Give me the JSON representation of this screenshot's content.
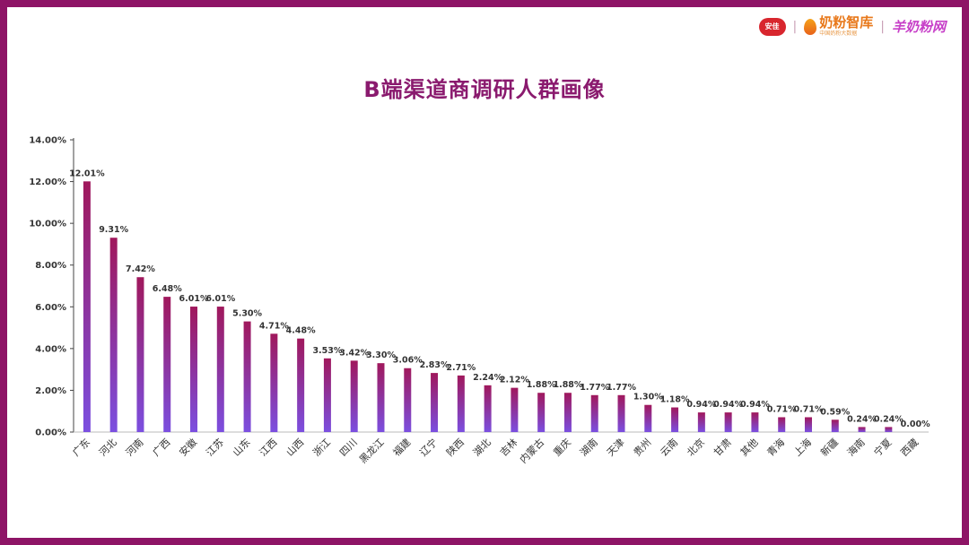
{
  "brand": {
    "logo1": "安佳",
    "logo2_main": "奶粉智库",
    "logo2_sub": "中国奶粉大数据",
    "logo3": "羊奶粉网"
  },
  "colors": {
    "frame": "#8e1466",
    "title": "#8a1a6e",
    "bar_top": "#a0185c",
    "bar_bottom": "#7b4fe0"
  },
  "chart_data": {
    "type": "bar",
    "title": "B端渠道商调研人群画像",
    "categories": [
      "广东",
      "河北",
      "河南",
      "广西",
      "安徽",
      "江苏",
      "山东",
      "江西",
      "山西",
      "浙江",
      "四川",
      "黑龙江",
      "福建",
      "辽宁",
      "陕西",
      "湖北",
      "吉林",
      "内蒙古",
      "重庆",
      "湖南",
      "天津",
      "贵州",
      "云南",
      "北京",
      "甘肃",
      "其他",
      "青海",
      "上海",
      "新疆",
      "海南",
      "宁夏",
      "西藏"
    ],
    "values": [
      12.01,
      9.31,
      7.42,
      6.48,
      6.01,
      6.01,
      5.3,
      4.71,
      4.48,
      3.53,
      3.42,
      3.3,
      3.06,
      2.83,
      2.71,
      2.24,
      2.12,
      1.88,
      1.88,
      1.77,
      1.77,
      1.3,
      1.18,
      0.94,
      0.94,
      0.94,
      0.71,
      0.71,
      0.59,
      0.24,
      0.24,
      0.0
    ],
    "value_labels": [
      "12.01%",
      "9.31%",
      "7.42%",
      "6.48%",
      "6.01%",
      "6.01%",
      "5.30%",
      "4.71%",
      "4.48%",
      "3.53%",
      "3.42%",
      "3.30%",
      "3.06%",
      "2.83%",
      "2.71%",
      "2.24%",
      "2.12%",
      "1.88%",
      "1.88%",
      "1.77%",
      "1.77%",
      "1.30%",
      "1.18%",
      "0.94%",
      "0.94%",
      "0.94%",
      "0.71%",
      "0.71%",
      "0.59%",
      "0.24%",
      "0.24%",
      "0.00%"
    ],
    "ylim": [
      0,
      14
    ],
    "yticks": [
      0,
      2,
      4,
      6,
      8,
      10,
      12,
      14
    ],
    "ytick_labels": [
      "0.00%",
      "2.00%",
      "4.00%",
      "6.00%",
      "8.00%",
      "10.00%",
      "12.00%",
      "14.00%"
    ],
    "grid": false,
    "legend": "none",
    "xlabel": "",
    "ylabel": ""
  }
}
